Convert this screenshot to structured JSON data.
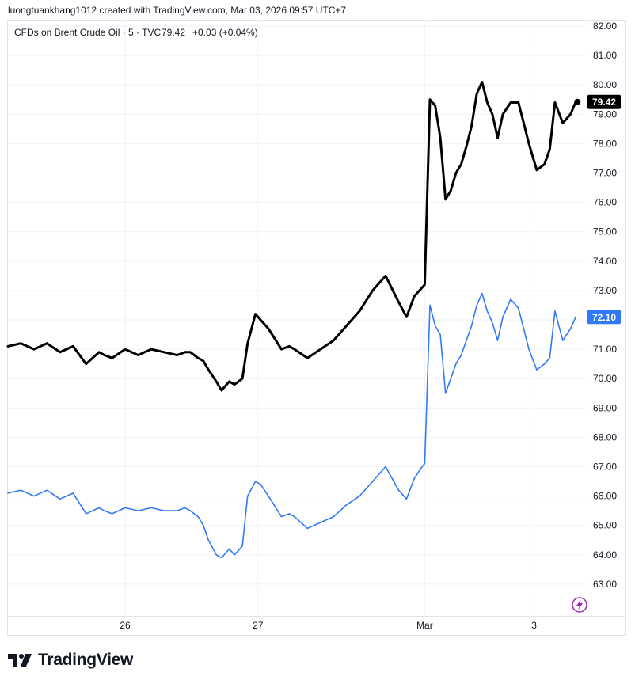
{
  "header": {
    "attribution": "luongtuankhang1012 created with TradingView.com, Mar 03, 2026 09:57 UTC+7"
  },
  "legend": {
    "symbol": "CFDs on Brent Crude Oil · 5 · TVC",
    "value": "79.42",
    "change": "+0.03 (+0.04%)"
  },
  "footer": {
    "brand": "TradingView"
  },
  "colors": {
    "primary_series": "#000000",
    "secondary_series": "#3179f5",
    "grid": "#f0f3fa",
    "axis_text": "#131722"
  },
  "chart_data": {
    "type": "line",
    "title": "CFDs on Brent Crude Oil · 5 · TVC",
    "xlabel": "",
    "ylabel": "",
    "ylim": [
      62.2,
      82.3
    ],
    "y_ticks": [
      "82.00",
      "81.00",
      "80.00",
      "79.00",
      "78.00",
      "77.00",
      "76.00",
      "75.00",
      "74.00",
      "73.00",
      "72.00",
      "71.00",
      "70.00",
      "69.00",
      "68.00",
      "67.00",
      "66.00",
      "65.00",
      "64.00",
      "63.00"
    ],
    "x_tick_labels": [
      {
        "label": "26",
        "t": 4.5
      },
      {
        "label": "27",
        "t": 9.6
      },
      {
        "label": "Mar",
        "t": 16.0
      },
      {
        "label": "3",
        "t": 20.2
      }
    ],
    "grid": true,
    "series": [
      {
        "last_value_label": "79.42",
        "color": "#000000",
        "x": [
          0,
          0.5,
          1,
          1.5,
          2,
          2.5,
          3,
          3.5,
          3.7,
          4,
          4.5,
          5,
          5.5,
          6,
          6.5,
          6.8,
          7,
          7.3,
          7.5,
          7.7,
          8,
          8.2,
          8.5,
          8.7,
          9,
          9.2,
          9.5,
          9.7,
          10,
          10.5,
          10.8,
          11,
          11.5,
          12,
          12.5,
          13,
          13.5,
          14,
          14.5,
          15,
          15.3,
          15.6,
          15.9,
          16,
          16.2,
          16.4,
          16.6,
          16.8,
          17,
          17.2,
          17.4,
          17.6,
          17.8,
          18,
          18.2,
          18.4,
          18.6,
          18.8,
          19,
          19.3,
          19.6,
          19.8,
          20,
          20.3,
          20.6,
          20.8,
          21,
          21.3,
          21.6,
          21.8
        ],
        "values": [
          71.1,
          71.2,
          71.0,
          71.2,
          70.9,
          71.1,
          70.5,
          70.9,
          70.8,
          70.7,
          71.0,
          70.8,
          71.0,
          70.9,
          70.8,
          70.9,
          70.9,
          70.7,
          70.6,
          70.3,
          69.9,
          69.6,
          69.9,
          69.8,
          70.0,
          71.2,
          72.2,
          72.0,
          71.7,
          71.0,
          71.1,
          71.0,
          70.7,
          71.0,
          71.3,
          71.8,
          72.3,
          73.0,
          73.5,
          72.6,
          72.1,
          72.8,
          73.1,
          73.2,
          79.5,
          79.3,
          78.2,
          76.1,
          76.4,
          77.0,
          77.3,
          77.9,
          78.6,
          79.7,
          80.1,
          79.4,
          79.0,
          78.2,
          79.0,
          79.4,
          79.4,
          78.7,
          78.0,
          77.1,
          77.3,
          77.8,
          79.4,
          78.7,
          79.0,
          79.42
        ]
      },
      {
        "last_value_label": "72.10",
        "color": "#3179f5",
        "x": [
          0,
          0.5,
          1,
          1.5,
          2,
          2.5,
          3,
          3.5,
          3.7,
          4,
          4.5,
          5,
          5.5,
          6,
          6.5,
          6.8,
          7,
          7.3,
          7.5,
          7.7,
          8,
          8.2,
          8.5,
          8.7,
          9,
          9.2,
          9.5,
          9.7,
          10,
          10.5,
          10.8,
          11,
          11.5,
          12,
          12.5,
          13,
          13.5,
          14,
          14.5,
          15,
          15.3,
          15.6,
          15.9,
          16,
          16.2,
          16.4,
          16.6,
          16.8,
          17,
          17.2,
          17.4,
          17.6,
          17.8,
          18,
          18.2,
          18.4,
          18.6,
          18.8,
          19,
          19.3,
          19.6,
          19.8,
          20,
          20.3,
          20.6,
          20.8,
          21,
          21.3,
          21.6,
          21.8
        ],
        "values": [
          66.1,
          66.2,
          66.0,
          66.2,
          65.9,
          66.1,
          65.4,
          65.6,
          65.5,
          65.4,
          65.6,
          65.5,
          65.6,
          65.5,
          65.5,
          65.6,
          65.5,
          65.3,
          65.0,
          64.5,
          64.0,
          63.9,
          64.2,
          64.0,
          64.3,
          66.0,
          66.5,
          66.4,
          66.0,
          65.3,
          65.4,
          65.3,
          64.9,
          65.1,
          65.3,
          65.7,
          66.0,
          66.5,
          67.0,
          66.2,
          65.9,
          66.6,
          67.0,
          67.1,
          72.5,
          71.8,
          71.5,
          69.5,
          70.0,
          70.5,
          70.8,
          71.3,
          71.8,
          72.5,
          72.9,
          72.3,
          71.9,
          71.3,
          72.1,
          72.7,
          72.4,
          71.7,
          71.0,
          70.3,
          70.5,
          70.7,
          72.3,
          71.3,
          71.7,
          72.1
        ]
      }
    ]
  }
}
